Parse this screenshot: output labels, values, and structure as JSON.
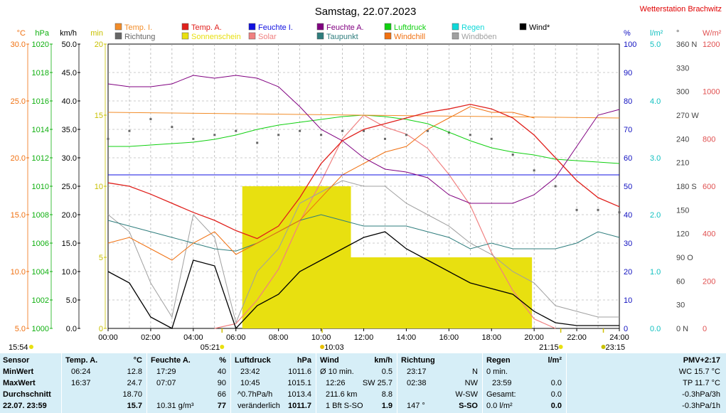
{
  "title": "Samstag, 22.07.2023",
  "station": "Wetterstation Brachwitz",
  "legend": [
    {
      "label": "Temp. I.",
      "color": "#f28c28"
    },
    {
      "label": "Temp. A.",
      "color": "#e0201c"
    },
    {
      "label": "Feuchte I.",
      "color": "#1010e0"
    },
    {
      "label": "Feuchte A.",
      "color": "#800080"
    },
    {
      "label": "Luftdruck",
      "color": "#10d010"
    },
    {
      "label": "Regen",
      "color": "#10d8d8"
    },
    {
      "label": "Wind*",
      "color": "#000000"
    },
    {
      "label": "Richtung",
      "color": "#666666"
    },
    {
      "label": "Sonnenschein",
      "color": "#e8e010"
    },
    {
      "label": "Solar",
      "color": "#f08080"
    },
    {
      "label": "Taupunkt",
      "color": "#2e7d7d"
    },
    {
      "label": "Windchill",
      "color": "#f07010"
    },
    {
      "label": "Windböen",
      "color": "#a0a0a0"
    }
  ],
  "axes": {
    "temp": {
      "unit": "°C",
      "ticks": [
        "30.0",
        "25.0",
        "20.0",
        "15.0",
        "10.0",
        "5.0"
      ],
      "color": "#f07010"
    },
    "pressure": {
      "unit": "hPa",
      "ticks": [
        "1020",
        "1018",
        "1016",
        "1014",
        "1012",
        "1010",
        "1008",
        "1006",
        "1004",
        "1002",
        "1000"
      ],
      "color": "#10b010"
    },
    "wind": {
      "unit": "km/h",
      "ticks": [
        "50.0",
        "45.0",
        "40.0",
        "35.0",
        "30.0",
        "25.0",
        "20.0",
        "15.0",
        "10.0",
        "5.0",
        "0.0"
      ],
      "color": "#000000"
    },
    "sun": {
      "unit": "min",
      "ticks": [
        "20",
        "15",
        "10",
        "5",
        "0"
      ],
      "color": "#c8c000"
    },
    "humidity": {
      "unit": "%",
      "ticks": [
        "100",
        "90",
        "80",
        "70",
        "60",
        "50",
        "40",
        "30",
        "20",
        "10",
        "0"
      ],
      "color": "#1010c0"
    },
    "rain": {
      "unit": "l/m²",
      "ticks": [
        "5.0",
        "4.0",
        "3.0",
        "2.0",
        "1.0",
        "0.0"
      ],
      "color": "#10c0c0"
    },
    "direction": {
      "unit": "°",
      "ticks": [
        "360 N",
        "330",
        "300",
        "270 W",
        "240",
        "210",
        "180 S",
        "150",
        "120",
        "90 O",
        "60",
        "30",
        "0 N"
      ],
      "color": "#444444"
    },
    "solar": {
      "unit": "W/m²",
      "ticks": [
        "1200",
        "1000",
        "800",
        "600",
        "400",
        "200",
        "0"
      ],
      "color": "#e05050"
    },
    "time_ticks": [
      "00:00",
      "02:00",
      "04:00",
      "06:00",
      "08:00",
      "10:00",
      "12:00",
      "14:00",
      "16:00",
      "18:00",
      "20:00",
      "22:00",
      "24:00"
    ]
  },
  "markers": {
    "moonset": "15:54",
    "sunrise": "05:21",
    "max_wind": "10:03",
    "sunset": "21:15",
    "moonrise": "23:15"
  },
  "chart_data": {
    "type": "line",
    "x_unit": "hour of day",
    "series": [
      {
        "name": "Temp. A.",
        "color": "#e0201c",
        "x": [
          0,
          1,
          2,
          3,
          4,
          5,
          6,
          7,
          8,
          9,
          10,
          11,
          12,
          13,
          14,
          15,
          16,
          17,
          18,
          19,
          20,
          21,
          22,
          23,
          24
        ],
        "values": [
          17.8,
          17.5,
          16.8,
          16.0,
          15.2,
          14.5,
          13.6,
          12.9,
          14.0,
          16.5,
          19.5,
          21.5,
          22.5,
          23.0,
          23.5,
          24.0,
          24.3,
          24.7,
          24.3,
          23.5,
          22.0,
          20.0,
          18.0,
          16.5,
          15.7
        ]
      },
      {
        "name": "Temp. I.",
        "color": "#f28c28",
        "x": [
          0,
          24
        ],
        "values": [
          24.0,
          23.5
        ]
      },
      {
        "name": "Windchill",
        "color": "#f07010",
        "x": [
          0,
          1,
          2,
          3,
          4,
          5,
          6,
          7,
          8,
          9,
          10,
          11,
          12,
          13,
          14,
          15,
          16,
          17,
          18,
          19,
          20
        ],
        "values": [
          12.5,
          13.0,
          12.0,
          11.0,
          12.5,
          13.5,
          11.5,
          12.5,
          13.5,
          14.5,
          16.5,
          18.5,
          19.5,
          20.5,
          21.0,
          22.5,
          23.5,
          24.5,
          24.0,
          24.0,
          23.5
        ]
      },
      {
        "name": "Feuchte A.",
        "color": "#800080",
        "x": [
          0,
          1,
          2,
          3,
          4,
          5,
          6,
          7,
          8,
          9,
          10,
          11,
          12,
          13,
          14,
          15,
          16,
          17,
          18,
          19,
          20,
          21,
          22,
          23,
          24
        ],
        "values": [
          86,
          85,
          85,
          86,
          89,
          88,
          89,
          88,
          85,
          78,
          70,
          66,
          60,
          56,
          55,
          53,
          47,
          44,
          44,
          44,
          47,
          53,
          64,
          75,
          77
        ]
      },
      {
        "name": "Feuchte I.",
        "color": "#1010e0",
        "x": [
          0,
          24
        ],
        "values": [
          54,
          54
        ]
      },
      {
        "name": "Luftdruck",
        "color": "#10d010",
        "x": [
          0,
          1,
          2,
          3,
          4,
          5,
          6,
          7,
          8,
          9,
          10,
          11,
          12,
          13,
          14,
          15,
          16,
          17,
          18,
          19,
          20,
          21,
          22,
          23,
          24
        ],
        "values": [
          1012.8,
          1012.8,
          1012.9,
          1013.0,
          1013.1,
          1013.3,
          1013.6,
          1014.0,
          1014.3,
          1014.5,
          1014.7,
          1014.9,
          1015.0,
          1014.9,
          1014.7,
          1014.4,
          1013.8,
          1013.2,
          1012.7,
          1012.4,
          1012.2,
          1011.9,
          1011.8,
          1011.7,
          1011.6
        ]
      },
      {
        "name": "Taupunkt",
        "color": "#2e7d7d",
        "x": [
          0,
          1,
          2,
          3,
          4,
          5,
          6,
          7,
          8,
          9,
          10,
          11,
          12,
          13,
          14,
          15,
          16,
          17,
          18,
          19,
          20,
          21,
          22,
          23,
          24
        ],
        "values": [
          14.5,
          14.0,
          13.5,
          13.0,
          12.5,
          12.0,
          11.8,
          12.5,
          13.5,
          14.5,
          15.0,
          14.5,
          14.0,
          14.0,
          14.0,
          13.5,
          13.0,
          12.0,
          12.5,
          12.0,
          12.0,
          12.0,
          12.5,
          13.5,
          13.0
        ]
      },
      {
        "name": "Wind*",
        "color": "#000000",
        "x": [
          0,
          1,
          2,
          3,
          4,
          5,
          6,
          7,
          8,
          9,
          10,
          11,
          12,
          13,
          14,
          15,
          16,
          17,
          18,
          19,
          20,
          21,
          22,
          23,
          24
        ],
        "values": [
          10,
          8,
          2,
          0,
          12,
          11,
          0,
          4,
          6,
          10,
          12,
          14,
          16,
          17,
          14,
          12,
          10,
          8,
          7,
          6,
          3,
          1,
          0.5,
          0.5,
          0.5
        ]
      },
      {
        "name": "Windböen",
        "color": "#a0a0a0",
        "x": [
          0,
          1,
          2,
          3,
          4,
          5,
          6,
          7,
          8,
          9,
          10,
          11,
          12,
          13,
          14,
          15,
          16,
          17,
          18,
          19,
          20,
          21,
          22,
          23,
          24
        ],
        "values": [
          20,
          17,
          8,
          2,
          20,
          16,
          1,
          10,
          14,
          22,
          24,
          26,
          25,
          25,
          22,
          20,
          18,
          15,
          13,
          10,
          8,
          4,
          3,
          2,
          2
        ]
      },
      {
        "name": "Richtung",
        "color": "#666666",
        "x": [
          0,
          1,
          2,
          3,
          4,
          5,
          6,
          7,
          8,
          9,
          10,
          11,
          12,
          13,
          14,
          15,
          16,
          17,
          18,
          19,
          20,
          21,
          22,
          23,
          24
        ],
        "values": [
          240,
          250,
          265,
          255,
          240,
          245,
          250,
          235,
          245,
          250,
          245,
          250,
          250,
          240,
          245,
          250,
          248,
          245,
          240,
          220,
          200,
          180,
          150,
          150,
          147
        ]
      },
      {
        "name": "Solar",
        "color": "#f08080",
        "x": [
          5,
          6,
          7,
          8,
          9,
          10,
          11,
          12,
          13,
          14,
          15,
          16,
          17,
          18,
          19,
          20,
          21
        ],
        "values": [
          0,
          20,
          120,
          250,
          450,
          620,
          800,
          900,
          850,
          820,
          760,
          650,
          520,
          320,
          160,
          40,
          0
        ]
      },
      {
        "name": "Sonnenschein",
        "color": "#e8e010",
        "x": [
          6.3,
          11.4,
          11.4,
          19.9
        ],
        "values": [
          10,
          10,
          5,
          5
        ]
      }
    ]
  },
  "table": {
    "sensor": {
      "header": "Sensor",
      "min": "MinWert",
      "max": "MaxWert",
      "avg": "Durchschnitt",
      "cur": "22.07. 23:59"
    },
    "temp": {
      "header": "Temp. A.",
      "unit": "°C",
      "min_time": "06:24",
      "min": "12.8",
      "max_time": "16:37",
      "max": "24.7",
      "avg": "18.70",
      "cur": "15.7"
    },
    "hum": {
      "header": "Feuchte A.",
      "unit": "%",
      "min_time": "17:29",
      "min": "40",
      "max_time": "07:07",
      "max": "90",
      "avg": "66",
      "cur_extra": "10.31 g/m³",
      "cur": "77"
    },
    "press": {
      "header": "Luftdruck",
      "unit": "hPa",
      "min_time": "23:42",
      "min": "1011.6",
      "max_time": "10:45",
      "max": "1015.1",
      "avg_extra": "^0.7hPa/h",
      "avg": "1013.4",
      "cur_extra": "veränderlich",
      "cur": "1011.7"
    },
    "wind": {
      "header": "Wind",
      "unit": "km/h",
      "r1_label": "Ø 10 min.",
      "r1": "0.5",
      "r2_label": "12:26",
      "r2": "SW 25.7",
      "r3_label": "211.6 km",
      "r3": "8.8",
      "r4_label": "1 Bft S-SO",
      "r4": "1.9"
    },
    "dir": {
      "header": "Richtung",
      "r1_label": "23:17",
      "r1": "N",
      "r2_label": "02:38",
      "r2": "NW",
      "r3": "W-SW",
      "r4_label": "147 °",
      "r4": "S-SO"
    },
    "rain": {
      "header": "Regen",
      "unit": "l/m²",
      "r1_label": "0 min.",
      "r2_label": "23:59",
      "r2": "0.0",
      "r3_label": "Gesamt:",
      "r3": "0.0",
      "r4_label": "0.0 l/m²",
      "r4": "0.0"
    },
    "pmv": {
      "header": "PMV+2:17",
      "r1": "WC 15.7 °C",
      "r2": "TP 11.7 °C",
      "r3": "-0.3hPa/3h",
      "r4": "-0.3hPa/1h"
    }
  }
}
